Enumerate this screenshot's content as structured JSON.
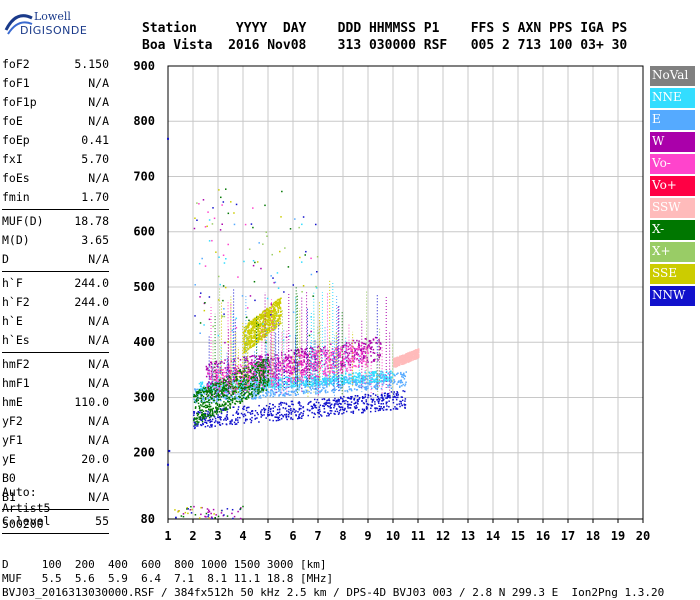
{
  "logo": {
    "line1": "Lowell",
    "line2": "DIGISONDE"
  },
  "header": {
    "row1": [
      "Station",
      "YYYY",
      "DAY",
      "DDD",
      "HHMMSS",
      "P1",
      "FFS",
      "S",
      "AXN",
      "PPS",
      "IGA",
      "PS"
    ],
    "row2": [
      "Boa Vista",
      "2016",
      "Nov08",
      "313",
      "030000",
      "RSF",
      "005",
      "2",
      "713",
      "100",
      "03+",
      "30"
    ]
  },
  "params": {
    "group1": [
      {
        "k": "foF2",
        "v": "5.150"
      },
      {
        "k": "foF1",
        "v": "N/A"
      },
      {
        "k": "foF1p",
        "v": "N/A"
      },
      {
        "k": "foE",
        "v": "N/A"
      },
      {
        "k": "foEp",
        "v": "0.41"
      },
      {
        "k": "fxI",
        "v": "5.70"
      },
      {
        "k": "foEs",
        "v": "N/A"
      },
      {
        "k": "fmin",
        "v": "1.70"
      }
    ],
    "group2": [
      {
        "k": "MUF(D)",
        "v": "18.78"
      },
      {
        "k": "M(D)",
        "v": "3.65"
      },
      {
        "k": "D",
        "v": "N/A"
      }
    ],
    "group3": [
      {
        "k": "h`F",
        "v": "244.0"
      },
      {
        "k": "h`F2",
        "v": "244.0"
      },
      {
        "k": "h`E",
        "v": "N/A"
      },
      {
        "k": "h`Es",
        "v": "N/A"
      }
    ],
    "group4": [
      {
        "k": "hmF2",
        "v": "N/A"
      },
      {
        "k": "hmF1",
        "v": "N/A"
      },
      {
        "k": "hmE",
        "v": "110.0"
      },
      {
        "k": "yF2",
        "v": "N/A"
      },
      {
        "k": "yF1",
        "v": "N/A"
      },
      {
        "k": "yE",
        "v": "20.0"
      },
      {
        "k": "B0",
        "v": "N/A"
      },
      {
        "k": "B1",
        "v": "N/A"
      }
    ],
    "group5": [
      {
        "k": "C-level",
        "v": "55"
      }
    ]
  },
  "autoscale": {
    "line1": "Auto:",
    "line2": "Artist5",
    "line3": "500200"
  },
  "footer": {
    "d_row": "D     100  200  400  600  800 1000 1500 3000 [km]",
    "muf_row": "MUF   5.5  5.6  5.9  6.4  7.1  8.1 11.1 18.8 [MHz]",
    "file_row": "BVJ03_2016313030000.RSF / 384fx512h 50 kHz 2.5 km / DPS-4D BVJ03 003 / 2.8 N 299.3 E  Ion2Png 1.3.20"
  },
  "legend": [
    {
      "label": "NoVal",
      "color": "#808080"
    },
    {
      "label": "NNE",
      "color": "#33ddff"
    },
    {
      "label": "E",
      "color": "#55aaff"
    },
    {
      "label": "W",
      "color": "#aa00aa"
    },
    {
      "label": "Vo-",
      "color": "#ff44cc"
    },
    {
      "label": "Vo+",
      "color": "#ff0044"
    },
    {
      "label": "SSW",
      "color": "#ffbbbb"
    },
    {
      "label": "X-",
      "color": "#007700"
    },
    {
      "label": "X+",
      "color": "#99cc66"
    },
    {
      "label": "SSE",
      "color": "#cccc00"
    },
    {
      "label": "NNW",
      "color": "#1111cc"
    }
  ],
  "chart_data": {
    "type": "scatter",
    "title": "",
    "xlabel": "",
    "ylabel": "",
    "xlim": [
      1,
      20
    ],
    "ylim": [
      80,
      900
    ],
    "xticks": [
      1,
      2,
      3,
      4,
      5,
      6,
      7,
      8,
      9,
      10,
      11,
      12,
      13,
      14,
      15,
      16,
      17,
      18,
      19,
      20
    ],
    "yticks": [
      80,
      200,
      300,
      400,
      500,
      600,
      700,
      800,
      900
    ],
    "grid": true,
    "legend_position": "right",
    "trace_bands": [
      {
        "series": "NNW",
        "x_start": 2.0,
        "x_end": 10.5,
        "y_start": 245,
        "y_end": 305
      },
      {
        "series": "E",
        "x_start": 2.0,
        "x_end": 10.5,
        "y_start": 290,
        "y_end": 340
      },
      {
        "series": "NNE",
        "x_start": 2.2,
        "x_end": 10.0,
        "y_start": 310,
        "y_end": 345
      },
      {
        "series": "W",
        "x_start": 2.5,
        "x_end": 9.5,
        "y_start": 320,
        "y_end": 400
      },
      {
        "series": "Vo-",
        "x_start": 2.5,
        "x_end": 9.0,
        "y_start": 300,
        "y_end": 390
      },
      {
        "series": "SSW",
        "x_start": 10.0,
        "x_end": 11.0,
        "y_start": 355,
        "y_end": 385
      },
      {
        "series": "X-",
        "x_start": 2.0,
        "x_end": 5.0,
        "y_start": 250,
        "y_end": 360
      },
      {
        "series": "SSE",
        "x_start": 4.0,
        "x_end": 5.5,
        "y_start": 380,
        "y_end": 470
      }
    ]
  }
}
